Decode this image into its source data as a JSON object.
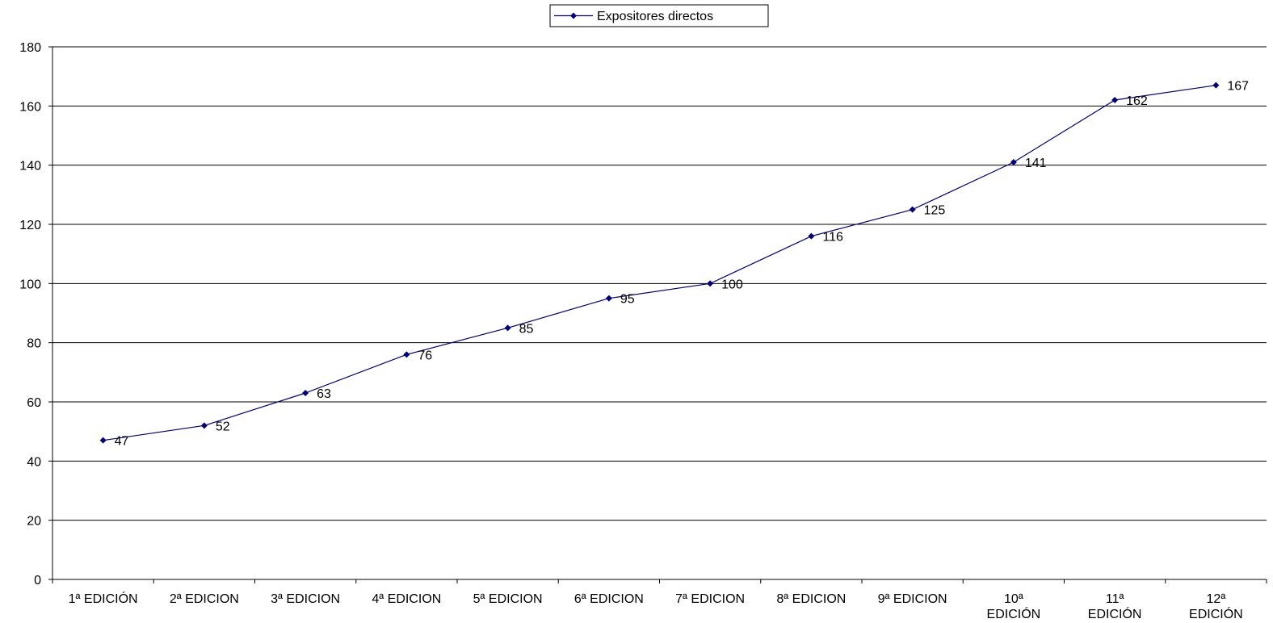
{
  "chart_data": {
    "type": "line",
    "categories": [
      [
        "1ª EDICIÓN"
      ],
      [
        "2ª EDICION"
      ],
      [
        "3ª EDICION"
      ],
      [
        "4ª EDICION"
      ],
      [
        "5ª EDICION"
      ],
      [
        "6ª EDICION"
      ],
      [
        "7ª EDICION"
      ],
      [
        "8ª EDICION"
      ],
      [
        "9ª EDICION"
      ],
      [
        "10ª",
        "EDICIÓN"
      ],
      [
        "11ª",
        "EDICIÓN"
      ],
      [
        "12ª",
        "EDICIÓN"
      ]
    ],
    "series": [
      {
        "name": "Expositores directos",
        "color": "#000080",
        "marker": "diamond",
        "values": [
          47,
          52,
          63,
          76,
          85,
          95,
          100,
          116,
          125,
          141,
          162,
          167
        ]
      }
    ],
    "ylim": [
      0,
      180
    ],
    "yticks": [
      0,
      20,
      40,
      60,
      80,
      100,
      120,
      140,
      160,
      180
    ],
    "grid": true,
    "legend_position": "top-center",
    "data_labels": true
  }
}
